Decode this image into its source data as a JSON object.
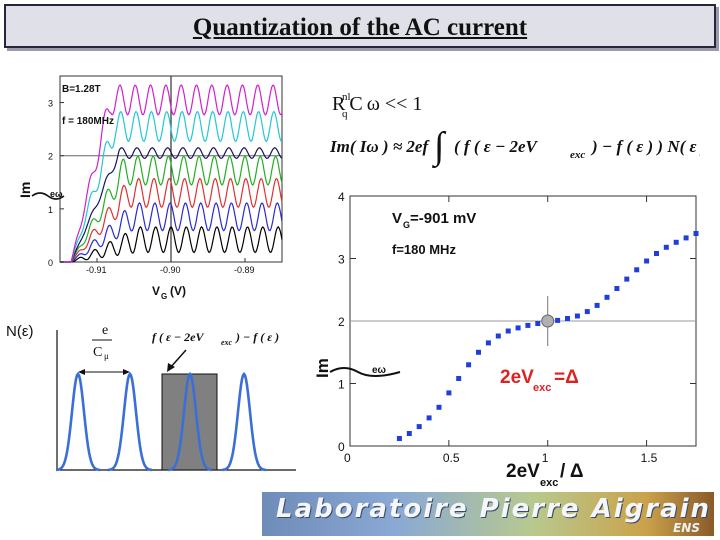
{
  "slide": {
    "title": "Quantization of the AC current",
    "banner_text": "Laboratoire Pierre Aigrain",
    "banner_sub": "ENS"
  },
  "formulas": {
    "condition": "R C ω << 1",
    "condition_sup": "nl",
    "condition_sub": "q",
    "im_lhs": "Im( Iω ) ≈ 2ef",
    "integrand": "( f ( ε − 2eV",
    "integrand_sub": "exc",
    "integrand_tail": ") − f ( ε ) )  N( ε )  dε",
    "schematic_label": "f ( ε − 2eV",
    "schematic_label_sub": "exc",
    "schematic_label_tail": ") − f ( ε )",
    "spacing_num": "e",
    "spacing_den": "C",
    "spacing_den_sub": "μ",
    "density_label": "N(ε)"
  },
  "chart_data": [
    {
      "type": "line",
      "x": [
        -0.915,
        -0.912,
        -0.909,
        -0.906,
        -0.903,
        -0.9,
        -0.897,
        -0.894,
        -0.891,
        -0.888,
        -0.885
      ],
      "xlim": [
        -0.915,
        -0.885
      ],
      "ylim": [
        0,
        3.5
      ],
      "xticks": [
        "-0.91",
        "-0.90",
        "-0.89"
      ],
      "yticks": [
        "0",
        "1",
        "2",
        "3"
      ],
      "xlabel": "V",
      "xlabel_sub": "G",
      "xlabel_unit": "(V)",
      "ylabel": "Im",
      "ylabel_annotation": "eω",
      "annotations": [
        "B=1.28T",
        "f = 180MHz"
      ],
      "cursor_x": -0.9,
      "guide_y": 2,
      "series": [
        {
          "color": "#000000",
          "base": 0.42,
          "amp": 0.24,
          "rise": 1.0
        },
        {
          "color": "#2a2ad0",
          "base": 0.85,
          "amp": 0.26,
          "rise": 0.92
        },
        {
          "color": "#e03030",
          "base": 1.3,
          "amp": 0.27,
          "rise": 0.86
        },
        {
          "color": "#20b020",
          "base": 1.72,
          "amp": 0.27,
          "rise": 0.8
        },
        {
          "color": "#141460",
          "base": 2.05,
          "amp": 0.1,
          "rise": 0.72
        },
        {
          "color": "#20c8d8",
          "base": 2.55,
          "amp": 0.28,
          "rise": 0.66
        },
        {
          "color": "#d020d0",
          "base": 3.05,
          "amp": 0.28,
          "rise": 0.6
        }
      ]
    },
    {
      "type": "scatter",
      "x": [
        0.25,
        0.3,
        0.35,
        0.4,
        0.45,
        0.5,
        0.55,
        0.6,
        0.65,
        0.7,
        0.75,
        0.8,
        0.85,
        0.9,
        0.95,
        1.0,
        1.05,
        1.1,
        1.15,
        1.2,
        1.25,
        1.3,
        1.35,
        1.4,
        1.45,
        1.5,
        1.55,
        1.6,
        1.65,
        1.7,
        1.75
      ],
      "y": [
        0.12,
        0.2,
        0.31,
        0.45,
        0.62,
        0.85,
        1.08,
        1.3,
        1.5,
        1.65,
        1.76,
        1.84,
        1.89,
        1.93,
        1.96,
        1.99,
        2.01,
        2.04,
        2.08,
        2.15,
        2.25,
        2.38,
        2.52,
        2.67,
        2.82,
        2.96,
        3.08,
        3.18,
        3.26,
        3.33,
        3.4
      ],
      "xlim": [
        0,
        1.75
      ],
      "ylim": [
        0,
        4
      ],
      "xticks": [
        "0",
        "0.5",
        "1",
        "1.5"
      ],
      "yticks": [
        "0",
        "1",
        "2",
        "3",
        "4"
      ],
      "xlabel": "2eV",
      "xlabel_sub": "exc",
      "xlabel_tail": " / Δ",
      "ylabel": "Im",
      "ylabel_annotation": "eω",
      "annotations": [
        "V",
        "G",
        "=-901 mV",
        "f=180 MHz"
      ],
      "highlight": {
        "x": 1.0,
        "y": 2.0,
        "label": "2eV",
        "label_sub": "exc",
        "label_tail": "=Δ"
      },
      "color": "#1f3fd8",
      "highlight_color": "#dd2222"
    }
  ]
}
